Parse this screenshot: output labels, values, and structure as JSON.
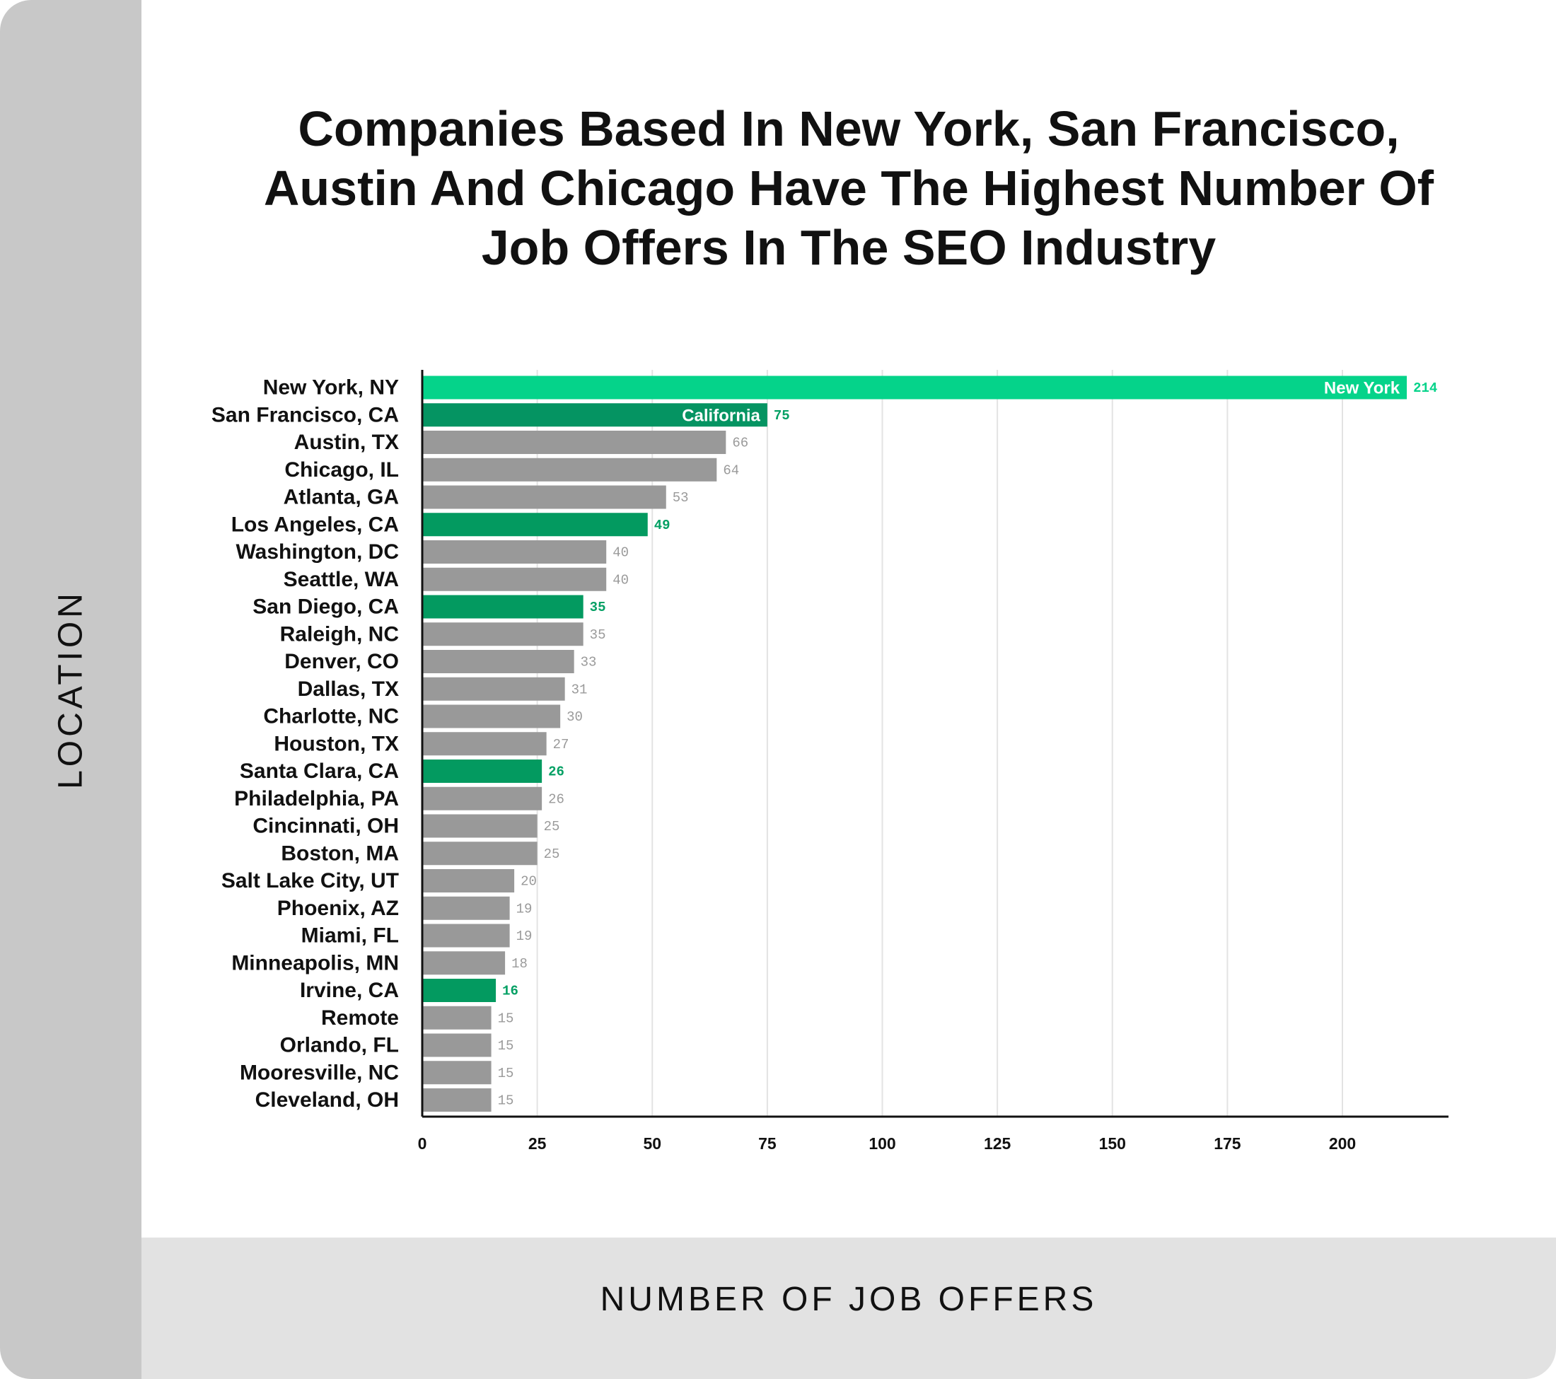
{
  "chart_data": {
    "type": "bar",
    "orientation": "horizontal",
    "title": "Companies Based In New York, San Francisco, Austin And Chicago Have The Highest Number Of Job Offers In The SEO Industry",
    "xlabel": "NUMBER OF JOB OFFERS",
    "ylabel": "LOCATION",
    "xlim": [
      0,
      225
    ],
    "xticks": [
      0,
      25,
      50,
      75,
      100,
      125,
      150,
      175,
      200
    ],
    "grid": true,
    "categories": [
      "New York, NY",
      "San Francisco, CA",
      "Austin, TX",
      "Chicago, IL",
      "Atlanta, GA",
      "Los Angeles, CA",
      "Washington, DC",
      "Seattle, WA",
      "San Diego, CA",
      "Raleigh, NC",
      "Denver, CO",
      "Dallas, TX",
      "Charlotte, NC",
      "Houston, TX",
      "Santa Clara, CA",
      "Philadelphia, PA",
      "Cincinnati, OH",
      "Boston, MA",
      "Salt Lake City, UT",
      "Phoenix, AZ",
      "Miami, FL",
      "Minneapolis, MN",
      "Irvine, CA",
      "Remote",
      "Orlando, FL",
      "Mooresville, NC",
      "Cleveland, OH"
    ],
    "values": [
      214,
      75,
      66,
      64,
      53,
      49,
      40,
      40,
      35,
      35,
      33,
      31,
      30,
      27,
      26,
      26,
      25,
      25,
      20,
      19,
      19,
      18,
      16,
      15,
      15,
      15,
      15
    ],
    "bar_groups": [
      "new-york",
      "california-bay",
      "other",
      "other",
      "other",
      "california",
      "other",
      "other",
      "california",
      "other",
      "other",
      "other",
      "other",
      "other",
      "california",
      "other",
      "other",
      "other",
      "other",
      "other",
      "other",
      "other",
      "california",
      "other",
      "other",
      "other",
      "other"
    ],
    "bar_annotations": [
      {
        "category": "New York, NY",
        "text": "New York"
      },
      {
        "category": "San Francisco, CA",
        "text": "California"
      }
    ],
    "colors": {
      "new-york": "#05d38a",
      "california-bay": "#059462",
      "california": "#039a60",
      "other": "#999999",
      "other_label": "#9a9a9a",
      "green_label": "#04a064",
      "new_york_label": "#05d38a"
    }
  }
}
